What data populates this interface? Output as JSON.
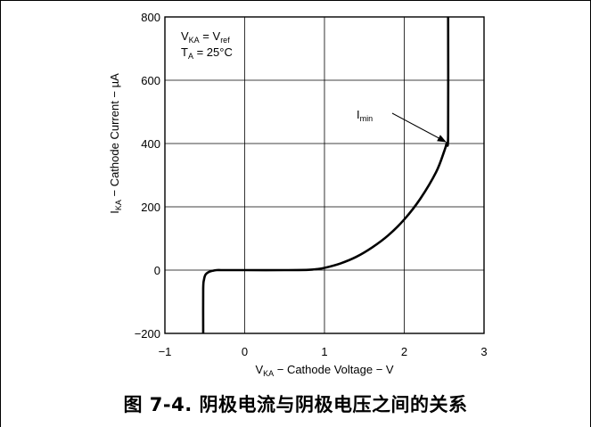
{
  "chart_data": {
    "type": "line",
    "title": "",
    "xlabel_prefix": "V",
    "xlabel_sub": "KA",
    "xlabel_rest": " − Cathode Voltage − V",
    "ylabel_prefix": "I",
    "ylabel_sub": "KA",
    "ylabel_rest": " − Cathode Current −  µA",
    "xlim": [
      -1,
      3
    ],
    "ylim": [
      -200,
      800
    ],
    "x_ticks": [
      -1,
      0,
      1,
      2,
      3
    ],
    "y_ticks": [
      -200,
      0,
      200,
      400,
      600,
      800
    ],
    "x_tick_labels": [
      "−1",
      "0",
      "1",
      "2",
      "3"
    ],
    "y_tick_labels": [
      "−200",
      "0",
      "200",
      "400",
      "600",
      "800"
    ],
    "grid": true,
    "series": [
      {
        "x": [
          -0.52,
          -0.52,
          -0.51,
          -0.49,
          -0.45,
          -0.4,
          -0.35,
          -0.3,
          -0.25,
          -0.2,
          0.0,
          0.5,
          0.8,
          0.9,
          1.0,
          1.2,
          1.4,
          1.6,
          1.8,
          2.0,
          2.2,
          2.4,
          2.5,
          2.53,
          2.55,
          2.55
        ],
        "y": [
          -200,
          -60,
          -30,
          -14,
          -6,
          -2,
          0,
          0,
          0,
          0,
          0,
          0,
          1,
          3,
          7,
          21,
          42,
          72,
          110,
          160,
          225,
          310,
          375,
          400,
          430,
          800
        ]
      }
    ],
    "annotations": {
      "conditions_line1_main": "V",
      "conditions_line1_sub": "KA",
      "conditions_line1_mid": " = V",
      "conditions_line1_sub2": "ref",
      "conditions_line2_main": "T",
      "conditions_line2_sub": "A",
      "conditions_line2_rest": " = 25°C",
      "imin_main": "I",
      "imin_sub": "min",
      "imin_point": [
        2.53,
        400
      ]
    }
  },
  "caption": "图 7-4. 阴极电流与阴极电压之间的关系"
}
